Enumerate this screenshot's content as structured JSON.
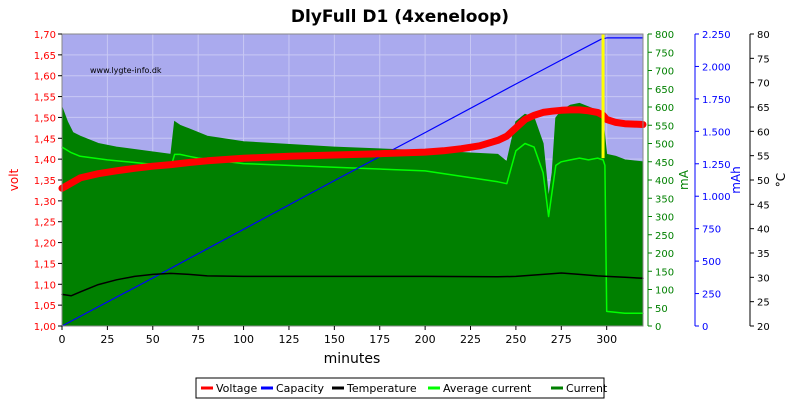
{
  "chart_data": {
    "type": "line",
    "title": "DlyFull D1 (4xeneloop)",
    "watermark": "www.lygte-info.dk",
    "xlabel": "minutes",
    "xlim": [
      0,
      320
    ],
    "x_ticks": [
      "0",
      "25",
      "50",
      "75",
      "100",
      "125",
      "150",
      "175",
      "200",
      "225",
      "250",
      "275",
      "300"
    ],
    "axes": {
      "volt": {
        "label": "volt",
        "color": "#ff0000",
        "range": [
          1.0,
          1.7
        ],
        "ticks": [
          "1,00",
          "1,05",
          "1,10",
          "1,15",
          "1,20",
          "1,25",
          "1,30",
          "1,35",
          "1,40",
          "1,45",
          "1,50",
          "1,55",
          "1,60",
          "1,65",
          "1,70"
        ]
      },
      "ma": {
        "label": "mA",
        "color": "#008000",
        "range": [
          0,
          800
        ],
        "ticks": [
          "0",
          "50",
          "100",
          "150",
          "200",
          "250",
          "300",
          "350",
          "400",
          "450",
          "500",
          "550",
          "600",
          "650",
          "700",
          "750",
          "800"
        ]
      },
      "mah": {
        "label": "mAh",
        "color": "#0000ff",
        "range": [
          0,
          2250
        ],
        "ticks": [
          "0",
          "250",
          "500",
          "750",
          "1.000",
          "1.250",
          "1.500",
          "1.750",
          "2.000",
          "2.250"
        ]
      },
      "temp": {
        "label": "°C",
        "color": "#000000",
        "range": [
          20,
          80
        ],
        "ticks": [
          "20",
          "25",
          "30",
          "35",
          "40",
          "45",
          "50",
          "55",
          "60",
          "65",
          "70",
          "75",
          "80"
        ]
      }
    },
    "series": [
      {
        "name": "Voltage",
        "axis": "volt",
        "color": "#ff0000",
        "x": [
          0,
          10,
          20,
          30,
          40,
          50,
          60,
          70,
          80,
          100,
          125,
          150,
          175,
          200,
          210,
          220,
          230,
          240,
          245,
          250,
          255,
          260,
          265,
          270,
          275,
          280,
          285,
          290,
          295,
          298,
          300,
          305,
          310,
          315,
          320
        ],
        "y": [
          1.33,
          1.355,
          1.365,
          1.372,
          1.378,
          1.383,
          1.387,
          1.392,
          1.396,
          1.402,
          1.407,
          1.41,
          1.413,
          1.417,
          1.42,
          1.425,
          1.432,
          1.445,
          1.455,
          1.475,
          1.495,
          1.505,
          1.512,
          1.515,
          1.517,
          1.518,
          1.518,
          1.516,
          1.512,
          1.505,
          1.495,
          1.488,
          1.485,
          1.484,
          1.483
        ]
      },
      {
        "name": "Capacity",
        "axis": "mah",
        "color": "#0000ff",
        "x": [
          0,
          50,
          100,
          150,
          200,
          250,
          275,
          297,
          300,
          310,
          320
        ],
        "y": [
          0,
          370,
          745,
          1120,
          1490,
          1865,
          2050,
          2210,
          2220,
          2220,
          2220
        ]
      },
      {
        "name": "Temperature",
        "axis": "temp",
        "color": "#000000",
        "x": [
          0,
          5,
          10,
          20,
          30,
          40,
          50,
          60,
          70,
          80,
          100,
          150,
          200,
          240,
          250,
          265,
          275,
          285,
          295,
          300,
          310,
          320
        ],
        "y": [
          26.5,
          26.2,
          27,
          28.5,
          29.5,
          30.2,
          30.6,
          30.8,
          30.6,
          30.3,
          30.2,
          30.2,
          30.2,
          30.1,
          30.2,
          30.6,
          30.9,
          30.6,
          30.3,
          30.2,
          30.0,
          29.8
        ]
      },
      {
        "name": "Average current",
        "axis": "ma",
        "color": "#00ff00",
        "x": [
          0,
          5,
          10,
          25,
          40,
          55,
          60,
          62,
          65,
          70,
          75,
          100,
          150,
          200,
          240,
          245,
          250,
          255,
          260,
          265,
          268,
          270,
          272,
          275,
          280,
          285,
          290,
          295,
          298,
          299,
          300,
          310,
          320
        ],
        "y": [
          490,
          475,
          465,
          455,
          448,
          440,
          435,
          470,
          470,
          465,
          460,
          445,
          435,
          425,
          395,
          390,
          480,
          500,
          490,
          420,
          300,
          370,
          440,
          450,
          455,
          460,
          455,
          460,
          455,
          440,
          40,
          35,
          35
        ]
      },
      {
        "name": "Current",
        "axis": "ma",
        "color": "#008000",
        "x": [
          0,
          3,
          6,
          10,
          20,
          30,
          45,
          60,
          62,
          65,
          70,
          80,
          100,
          150,
          200,
          240,
          245,
          250,
          255,
          260,
          265,
          268,
          270,
          272,
          275,
          280,
          285,
          290,
          295,
          298,
          300,
          305,
          310,
          320
        ],
        "y": [
          600,
          560,
          530,
          520,
          500,
          490,
          480,
          470,
          560,
          550,
          540,
          520,
          505,
          490,
          480,
          470,
          450,
          560,
          580,
          570,
          500,
          350,
          420,
          570,
          590,
          605,
          610,
          600,
          590,
          560,
          470,
          465,
          455,
          450
        ]
      }
    ],
    "legend_position": "bottom",
    "grid": true
  }
}
